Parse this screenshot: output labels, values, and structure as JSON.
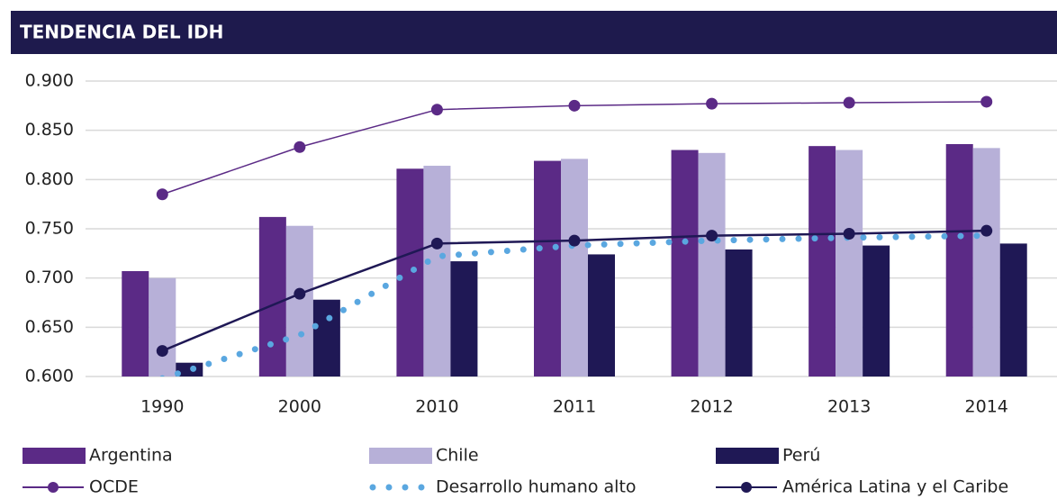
{
  "chart_data": {
    "type": "bar",
    "title": "TENDENCIA DEL IDH",
    "categories": [
      "1990",
      "2000",
      "2010",
      "2011",
      "2012",
      "2013",
      "2014"
    ],
    "ylim": [
      0.6,
      0.9
    ],
    "yticks": [
      {
        "value": 0.6,
        "label": "0.600"
      },
      {
        "value": 0.65,
        "label": "0.650"
      },
      {
        "value": 0.7,
        "label": "0.700"
      },
      {
        "value": 0.75,
        "label": "0.750"
      },
      {
        "value": 0.8,
        "label": "0.800"
      },
      {
        "value": 0.85,
        "label": "0.850"
      },
      {
        "value": 0.9,
        "label": "0.900"
      }
    ],
    "grid": true,
    "series": [
      {
        "name": "Argentina",
        "type": "bar",
        "color": "#5b2a86",
        "values": [
          0.707,
          0.762,
          0.811,
          0.819,
          0.83,
          0.834,
          0.836
        ]
      },
      {
        "name": "Chile",
        "type": "bar",
        "color": "#b7b0d8",
        "values": [
          0.7,
          0.753,
          0.814,
          0.821,
          0.827,
          0.83,
          0.832
        ]
      },
      {
        "name": "Perú",
        "type": "bar",
        "color": "#1f1855",
        "values": [
          0.614,
          0.678,
          0.717,
          0.724,
          0.729,
          0.733,
          0.735
        ]
      },
      {
        "name": "OCDE",
        "type": "line",
        "color": "#5b2a86",
        "values": [
          0.785,
          0.833,
          0.871,
          0.875,
          0.877,
          0.878,
          0.879
        ]
      },
      {
        "name": "Desarrollo humano alto",
        "type": "line",
        "style": "dotted",
        "color": "#5aa7e0",
        "values": [
          0.598,
          0.642,
          0.722,
          0.733,
          0.738,
          0.741,
          0.743
        ]
      },
      {
        "name": "América Latina y el Caribe",
        "type": "line",
        "color": "#1f1855",
        "values": [
          0.626,
          0.684,
          0.735,
          0.738,
          0.743,
          0.745,
          0.748
        ]
      }
    ]
  }
}
